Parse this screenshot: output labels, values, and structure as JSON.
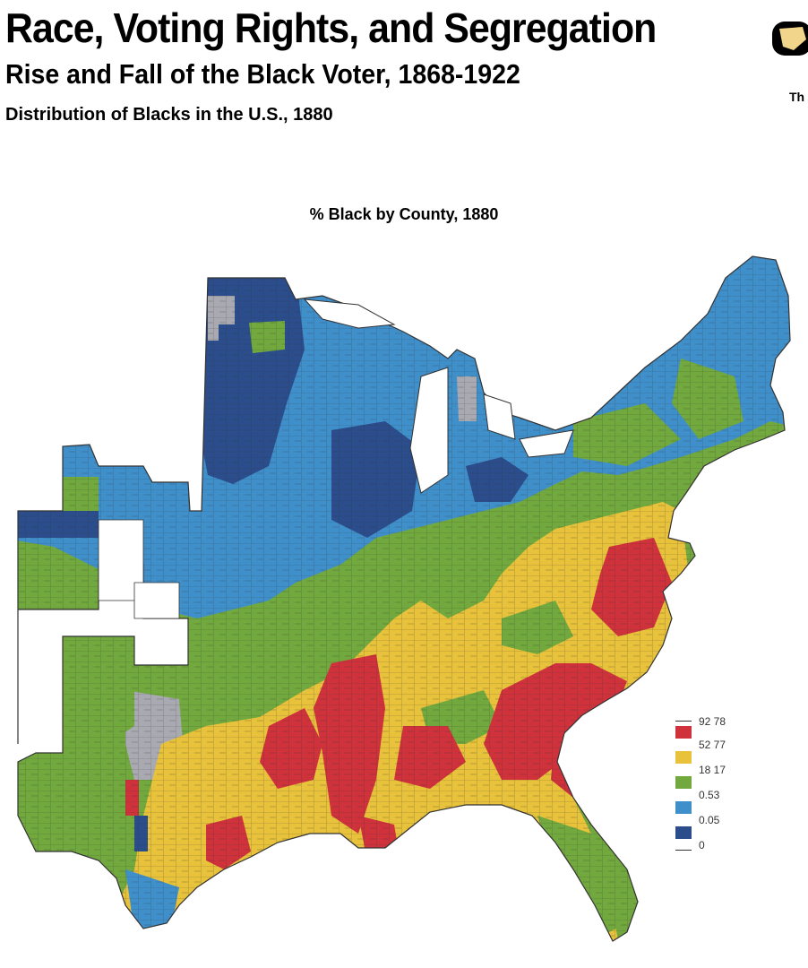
{
  "header": {
    "title": "Race, Voting Rights, and Segregation",
    "subtitle": "Rise and Fall of the Black Voter, 1868-1922",
    "caption": "Distribution of Blacks in the U.S., 1880",
    "logo_text": "Th"
  },
  "map": {
    "title": "% Black by County, 1880",
    "colors": {
      "high": "#d0323c",
      "mid_high": "#e8c23a",
      "mid": "#72a93e",
      "low": "#3f8fcb",
      "lowest": "#2b4d8c",
      "no_data": "#a9a9b1",
      "border": "#333333"
    }
  },
  "legend": {
    "items": [
      {
        "label": "92 78",
        "color": ""
      },
      {
        "label": "52 77",
        "color": "#d0323c"
      },
      {
        "label": "18 17",
        "color": "#e8c23a"
      },
      {
        "label": "0.53",
        "color": "#72a93e"
      },
      {
        "label": "0.05",
        "color": "#3f8fcb"
      },
      {
        "label": "0",
        "color": "#2b4d8c"
      }
    ]
  }
}
